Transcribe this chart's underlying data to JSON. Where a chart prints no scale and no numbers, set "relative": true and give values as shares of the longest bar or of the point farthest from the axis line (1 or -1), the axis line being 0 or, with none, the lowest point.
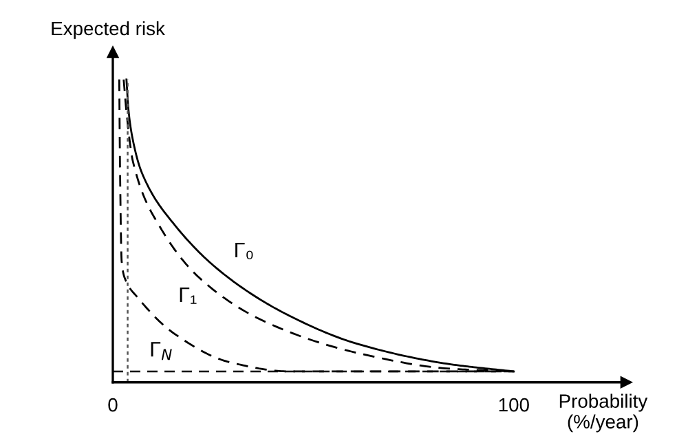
{
  "chart_data": {
    "type": "line",
    "relative": true,
    "xlabel": "Probability\n(%/year)",
    "ylabel": "Expected risk",
    "xlim": [
      0,
      128
    ],
    "xticks": [
      0,
      100
    ],
    "tick_labels": "x",
    "grid": false,
    "legend": false,
    "marker": "none",
    "series": [
      {
        "name": "Γ₀",
        "color": "#000000",
        "line_style": "solid",
        "x": [
          3.4,
          3.9,
          5,
          7.3,
          15.4,
          27.9,
          44,
          61,
          84,
          100
        ],
        "values": [
          1.0,
          0.9,
          0.8,
          0.69,
          0.52,
          0.355,
          0.22,
          0.127,
          0.06,
          0.036
        ]
      },
      {
        "name": "Γ₁",
        "color": "#000000",
        "line_style": "dashed",
        "x": [
          2.7,
          3.5,
          5,
          11.9,
          22,
          38,
          61,
          84,
          100
        ],
        "values": [
          1.0,
          0.88,
          0.73,
          0.51,
          0.34,
          0.2,
          0.097,
          0.045,
          0.036
        ]
      },
      {
        "name": "Γ$_{N}$",
        "color": "#000000",
        "line_style": "dashed",
        "x": [
          1.6,
          1.8,
          2.2,
          3.1,
          6.2,
          15.4,
          29,
          44,
          100
        ],
        "values": [
          1.0,
          0.7,
          0.4,
          0.34,
          0.28,
          0.16,
          0.067,
          0.036,
          0.036
        ]
      }
    ],
    "ref_lines": [
      {
        "axis": "y",
        "value": 0.036,
        "color": "#000000",
        "line_style": "dashed"
      },
      {
        "axis": "x",
        "value": 3.7,
        "color": "#555555",
        "line_style": "dotted"
      }
    ]
  }
}
